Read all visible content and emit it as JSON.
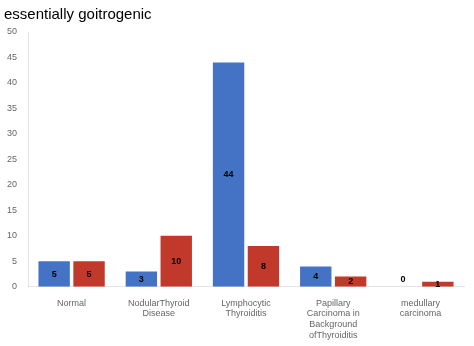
{
  "chart_data": {
    "type": "bar",
    "title": "essentially goitrogenic",
    "categories": [
      "Normal",
      "NodularThyroid\nDisease",
      "Lymphocytic\nThyroiditis",
      "Papillary\nCarcinoma in\nBackground\nofThyroiditis",
      "medullary\ncarcinoma"
    ],
    "series": [
      {
        "color": "#4472c4",
        "values": [
          5,
          3,
          44,
          4,
          0
        ]
      },
      {
        "color": "#c0392b",
        "values": [
          5,
          10,
          8,
          2,
          1
        ]
      }
    ],
    "ylim": [
      0,
      50
    ],
    "yticks": [
      0,
      5,
      10,
      15,
      20,
      25,
      30,
      35,
      40,
      45,
      50
    ],
    "grid": false,
    "data_labels": true
  }
}
